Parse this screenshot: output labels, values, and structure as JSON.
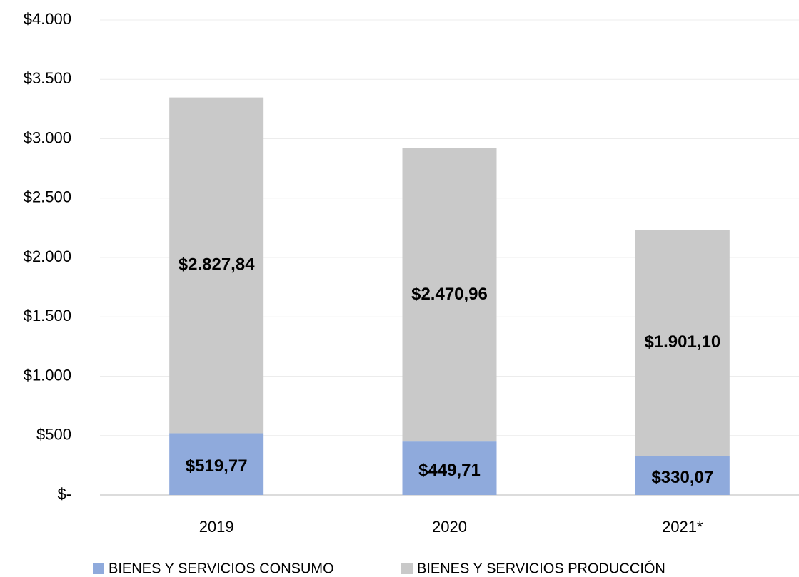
{
  "chart_data": {
    "type": "stacked_bar",
    "categories": [
      "2019",
      "2020",
      "2021*"
    ],
    "series": [
      {
        "name": "BIENES Y SERVICIOS CONSUMO",
        "color": "#8faadc",
        "values": [
          519.77,
          449.71,
          330.07
        ],
        "value_labels": [
          "$519,77",
          "$449,71",
          "$330,07"
        ]
      },
      {
        "name": "BIENES Y SERVICIOS PRODUCCIÓN",
        "color": "#c9c9c9",
        "values": [
          2827.84,
          2470.96,
          1901.1
        ],
        "value_labels": [
          "$2.827,84",
          "$2.470,96",
          "$1.901,10"
        ]
      }
    ],
    "ylim": [
      0,
      4000
    ],
    "yticks": [
      {
        "value": 0,
        "label": "$-"
      },
      {
        "value": 500,
        "label": "$500"
      },
      {
        "value": 1000,
        "label": "$1.000"
      },
      {
        "value": 1500,
        "label": "$1.500"
      },
      {
        "value": 2000,
        "label": "$2.000"
      },
      {
        "value": 2500,
        "label": "$2.500"
      },
      {
        "value": 3000,
        "label": "$3.000"
      },
      {
        "value": 3500,
        "label": "$3.500"
      },
      {
        "value": 4000,
        "label": "$4.000"
      }
    ],
    "grid": true,
    "legend": "bottom"
  }
}
